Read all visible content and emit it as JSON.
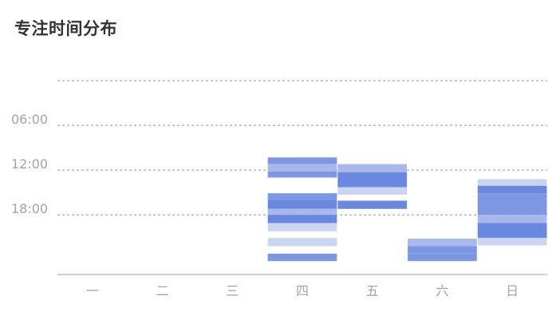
{
  "title": "专注时间分布",
  "chart_data": {
    "type": "heatmap",
    "title": "专注时间分布",
    "categories": [
      "一",
      "二",
      "三",
      "四",
      "五",
      "六",
      "日"
    ],
    "y_ticks": [
      {
        "hour": 6,
        "label": "06:00"
      },
      {
        "hour": 12,
        "label": "12:00"
      },
      {
        "hour": 18,
        "label": "18:00"
      }
    ],
    "y_range_hours": [
      0,
      26
    ],
    "grid": true,
    "colors": {
      "light": "#ccd5f0",
      "mid": "#a9b8eb",
      "dark": "#7d97e2",
      "darker": "#6a88e0"
    },
    "sessions": [
      {
        "day": "四",
        "start": 10.3,
        "end": 11.2,
        "intensity": "dark"
      },
      {
        "day": "四",
        "start": 11.2,
        "end": 12.2,
        "intensity": "mid"
      },
      {
        "day": "四",
        "start": 12.2,
        "end": 13.0,
        "intensity": "dark"
      },
      {
        "day": "四",
        "start": 15.1,
        "end": 16.0,
        "intensity": "dark"
      },
      {
        "day": "四",
        "start": 16.0,
        "end": 17.2,
        "intensity": "darker"
      },
      {
        "day": "四",
        "start": 17.2,
        "end": 18.0,
        "intensity": "mid"
      },
      {
        "day": "四",
        "start": 18.0,
        "end": 19.1,
        "intensity": "darker"
      },
      {
        "day": "四",
        "start": 19.1,
        "end": 20.2,
        "intensity": "light"
      },
      {
        "day": "四",
        "start": 21.1,
        "end": 22.2,
        "intensity": "light"
      },
      {
        "day": "四",
        "start": 23.2,
        "end": 24.2,
        "intensity": "dark"
      },
      {
        "day": "五",
        "start": 11.2,
        "end": 12.3,
        "intensity": "mid"
      },
      {
        "day": "五",
        "start": 12.3,
        "end": 14.3,
        "intensity": "darker"
      },
      {
        "day": "五",
        "start": 14.3,
        "end": 15.3,
        "intensity": "light"
      },
      {
        "day": "五",
        "start": 16.1,
        "end": 17.2,
        "intensity": "darker"
      },
      {
        "day": "六",
        "start": 21.2,
        "end": 22.2,
        "intensity": "mid"
      },
      {
        "day": "六",
        "start": 22.2,
        "end": 23.2,
        "intensity": "dark"
      },
      {
        "day": "六",
        "start": 23.2,
        "end": 24.2,
        "intensity": "dark"
      },
      {
        "day": "日",
        "start": 13.2,
        "end": 14.1,
        "intensity": "light"
      },
      {
        "day": "日",
        "start": 14.1,
        "end": 15.1,
        "intensity": "darker"
      },
      {
        "day": "日",
        "start": 15.1,
        "end": 18.0,
        "intensity": "dark"
      },
      {
        "day": "日",
        "start": 18.0,
        "end": 19.1,
        "intensity": "mid"
      },
      {
        "day": "日",
        "start": 19.1,
        "end": 21.1,
        "intensity": "darker"
      },
      {
        "day": "日",
        "start": 21.1,
        "end": 22.1,
        "intensity": "light"
      }
    ]
  }
}
